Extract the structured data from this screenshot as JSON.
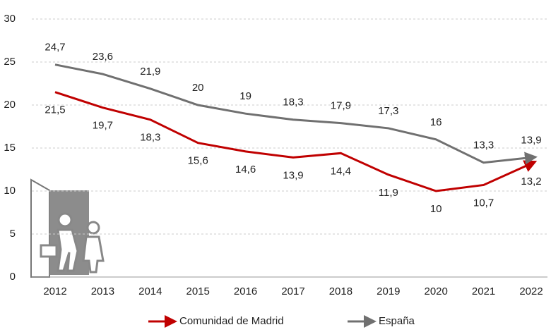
{
  "chart_data": {
    "type": "line",
    "categories": [
      "2012",
      "2013",
      "2014",
      "2015",
      "2016",
      "2017",
      "2018",
      "2019",
      "2020",
      "2021",
      "2022"
    ],
    "series": [
      {
        "name": "Comunidad de Madrid",
        "color": "#c00000",
        "values": [
          21.5,
          19.7,
          18.3,
          15.6,
          14.6,
          13.9,
          14.4,
          11.9,
          10,
          10.7,
          13.2
        ],
        "value_labels": [
          "21,5",
          "19,7",
          "18,3",
          "15,6",
          "14,6",
          "13,9",
          "14,4",
          "11,9",
          "10",
          "10,7",
          "13,2"
        ]
      },
      {
        "name": "España",
        "color": "#707070",
        "values": [
          24.7,
          23.6,
          21.9,
          20,
          19,
          18.3,
          17.9,
          17.3,
          16,
          13.3,
          13.9
        ],
        "value_labels": [
          "24,7",
          "23,6",
          "21,9",
          "20",
          "19",
          "18,3",
          "17,9",
          "17,3",
          "16",
          "13,3",
          "13,9"
        ]
      }
    ],
    "ylim": [
      0,
      30
    ],
    "yticks": [
      0,
      5,
      10,
      15,
      20,
      25,
      30
    ],
    "grid": true
  }
}
